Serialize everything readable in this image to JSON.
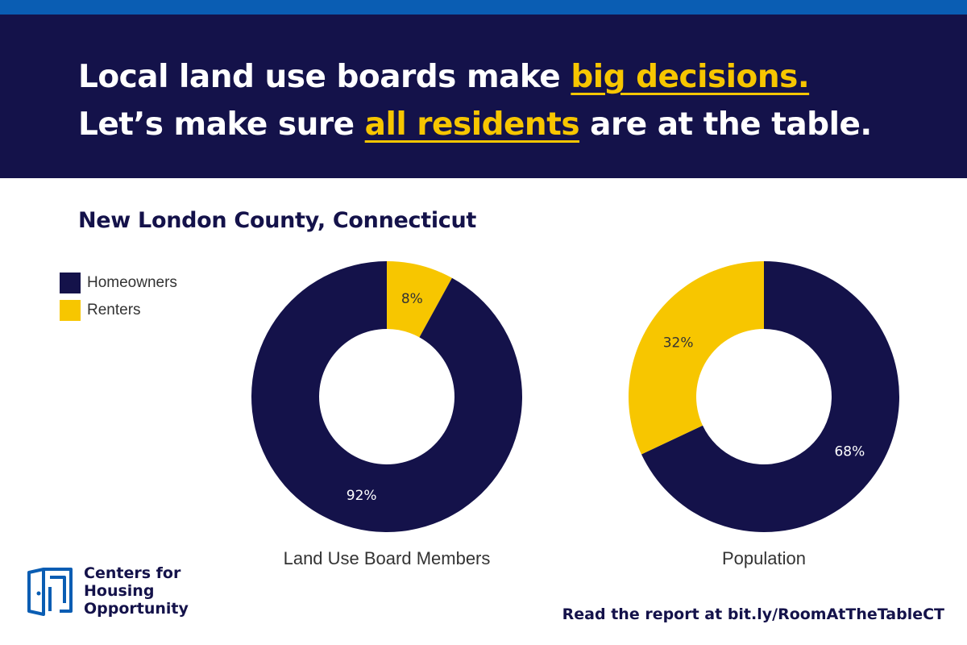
{
  "header": {
    "line1_prefix": "Local land use boards make ",
    "line1_highlight": "big decisions.",
    "line2_prefix": "Let’s make sure ",
    "line2_highlight": "all residents",
    "line2_suffix": " are at the table."
  },
  "subtitle": "New London County, Connecticut",
  "legend": [
    {
      "label": "Homeowners",
      "color": "#14124a"
    },
    {
      "label": "Renters",
      "color": "#f7c600"
    }
  ],
  "chart_data": [
    {
      "type": "pie",
      "title": "Land Use Board Members",
      "slices": [
        {
          "name": "Renters",
          "value": 8,
          "label": "8%",
          "color": "#f7c600",
          "text_color": "#333333"
        },
        {
          "name": "Homeowners",
          "value": 92,
          "label": "92%",
          "color": "#14124a",
          "text_color": "#ffffff"
        }
      ]
    },
    {
      "type": "pie",
      "title": "Population",
      "slices": [
        {
          "name": "Homeowners",
          "value": 68,
          "label": "68%",
          "color": "#14124a",
          "text_color": "#ffffff"
        },
        {
          "name": "Renters",
          "value": 32,
          "label": "32%",
          "color": "#f7c600",
          "text_color": "#333333"
        }
      ]
    }
  ],
  "logo": {
    "line1": "Centers for",
    "line2": "Housing",
    "line3": "Opportunity",
    "icon": "door-icon",
    "color": "#0a5db3"
  },
  "footer": {
    "link_text": "Read the report at bit.ly/RoomAtTheTableCT"
  }
}
